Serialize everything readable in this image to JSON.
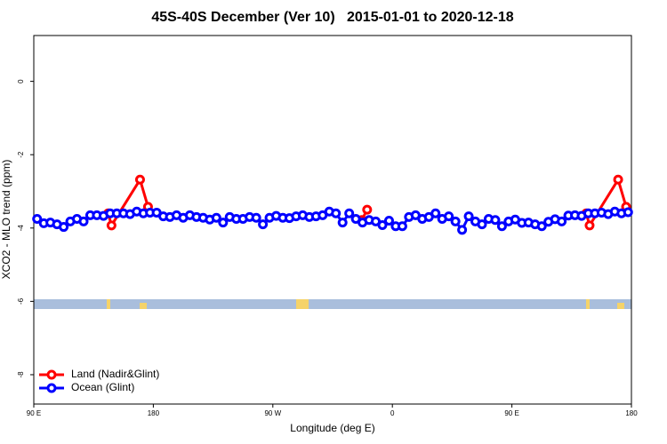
{
  "chart_data": {
    "type": "line",
    "title": "45S-40S December (Ver 10)   2015-01-01 to 2020-12-18",
    "xlabel": "Longitude (deg E)",
    "ylabel": "XCO2 - MLO trend (ppm)",
    "xlim": [
      90,
      540
    ],
    "xticks": [
      {
        "value": 90,
        "label": "90 E"
      },
      180,
      {
        "value": 270,
        "label": "90 W"
      },
      {
        "value": 360,
        "label": "0"
      },
      {
        "value": 450,
        "label": "90 E"
      },
      {
        "value": 540,
        "label": "180"
      }
    ],
    "ylim": [
      -8.8,
      1.25
    ],
    "yticks": [
      0,
      -2,
      -4,
      -6,
      -8
    ],
    "legend": "bottomleft",
    "series": [
      {
        "name": "Land (Nadir&Glint)",
        "color": "#ff0000",
        "x": [
          146,
          148.5,
          170,
          176,
          null,
          337,
          341,
          null,
          506,
          508.5,
          530,
          536
        ],
        "values": [
          -3.6,
          -3.93,
          -2.68,
          -3.42,
          null,
          -3.78,
          -3.5,
          null,
          -3.6,
          -3.93,
          -2.68,
          -3.42
        ]
      },
      {
        "name": "Ocean (Glint)",
        "color": "#0000ff",
        "x": [
          92.5,
          97.5,
          102.5,
          107.5,
          112.5,
          117.5,
          122.5,
          127.5,
          132.5,
          137.5,
          142.5,
          147.5,
          152.5,
          157.5,
          162.5,
          167.5,
          172.5,
          177.5,
          182.5,
          187.5,
          192.5,
          197.5,
          202.5,
          207.5,
          212.5,
          217.5,
          222.5,
          227.5,
          232.5,
          237.5,
          242.5,
          247.5,
          252.5,
          257.5,
          262.5,
          267.5,
          272.5,
          277.5,
          282.5,
          287.5,
          292.5,
          297.5,
          302.5,
          307.5,
          312.5,
          317.5,
          322.5,
          327.5,
          332.5,
          337.5,
          342.5,
          347.5,
          352.5,
          357.5,
          362.5,
          367.5,
          372.5,
          377.5,
          382.5,
          387.5,
          392.5,
          397.5,
          402.5,
          407.5,
          412.5,
          417.5,
          422.5,
          427.5,
          432.5,
          437.5,
          442.5,
          447.5,
          452.5,
          457.5,
          462.5,
          467.5,
          472.5,
          477.5,
          482.5,
          487.5,
          492.5,
          497.5,
          502.5,
          507.5,
          512.5,
          517.5,
          522.5,
          527.5,
          532.5,
          537.5
        ],
        "values": [
          -3.75,
          -3.87,
          -3.85,
          -3.9,
          -3.97,
          -3.82,
          -3.75,
          -3.82,
          -3.65,
          -3.65,
          -3.67,
          -3.6,
          -3.6,
          -3.6,
          -3.62,
          -3.55,
          -3.6,
          -3.58,
          -3.58,
          -3.68,
          -3.7,
          -3.65,
          -3.72,
          -3.65,
          -3.7,
          -3.72,
          -3.77,
          -3.72,
          -3.85,
          -3.7,
          -3.75,
          -3.75,
          -3.7,
          -3.72,
          -3.9,
          -3.72,
          -3.67,
          -3.72,
          -3.73,
          -3.68,
          -3.65,
          -3.7,
          -3.68,
          -3.65,
          -3.55,
          -3.6,
          -3.85,
          -3.6,
          -3.75,
          -3.85,
          -3.78,
          -3.82,
          -3.92,
          -3.8,
          -3.95,
          -3.95,
          -3.7,
          -3.65,
          -3.75,
          -3.7,
          -3.6,
          -3.75,
          -3.68,
          -3.82,
          -4.05,
          -3.68,
          -3.82,
          -3.9,
          -3.75,
          -3.78,
          -3.95,
          -3.82,
          -3.77,
          -3.86,
          -3.85,
          -3.9,
          -3.95,
          -3.83,
          -3.76,
          -3.82,
          -3.66,
          -3.65,
          -3.67,
          -3.6,
          -3.6,
          -3.58,
          -3.62,
          -3.55,
          -3.6,
          -3.57
        ]
      }
    ]
  }
}
